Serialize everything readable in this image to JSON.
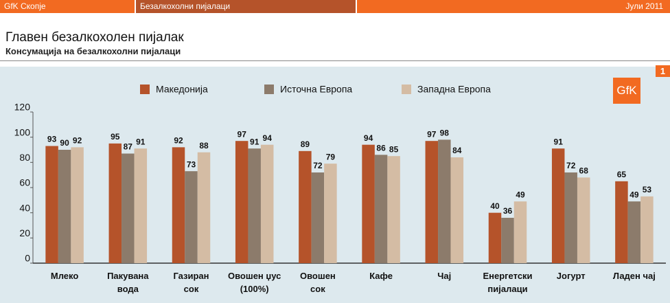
{
  "header": {
    "left": "GfK Скопје",
    "center": "Безалкохолни пијалаци",
    "right": "Јули 2011"
  },
  "logo": "GfK",
  "page_number": "1",
  "chart_data": {
    "type": "bar",
    "title": "Главен безалкохолен пијалак",
    "subtitle": "Консумација на безалкохолни пијалаци",
    "categories": [
      "Млеко",
      "Пакувана\nвода",
      "Газиран\nсок",
      "Овошен џус\n(100%)",
      "Овошен\nсок",
      "Кафе",
      "Чај",
      "Енергетски\nпијалаци",
      "Јогурт",
      "Ладен чај"
    ],
    "series": [
      {
        "name": "Македонија",
        "color": "#b5532a",
        "values": [
          93,
          95,
          92,
          97,
          89,
          94,
          97,
          40,
          91,
          65
        ]
      },
      {
        "name": "Источна Европа",
        "color": "#8c7b6b",
        "values": [
          90,
          87,
          73,
          91,
          72,
          86,
          98,
          36,
          72,
          49
        ]
      },
      {
        "name": "Западна Европа",
        "color": "#d4bca4",
        "values": [
          92,
          91,
          88,
          94,
          79,
          85,
          84,
          49,
          68,
          53
        ]
      }
    ],
    "ylim": [
      0,
      120
    ],
    "yticks": [
      0,
      20,
      40,
      60,
      80,
      100,
      120
    ],
    "grid": false
  }
}
